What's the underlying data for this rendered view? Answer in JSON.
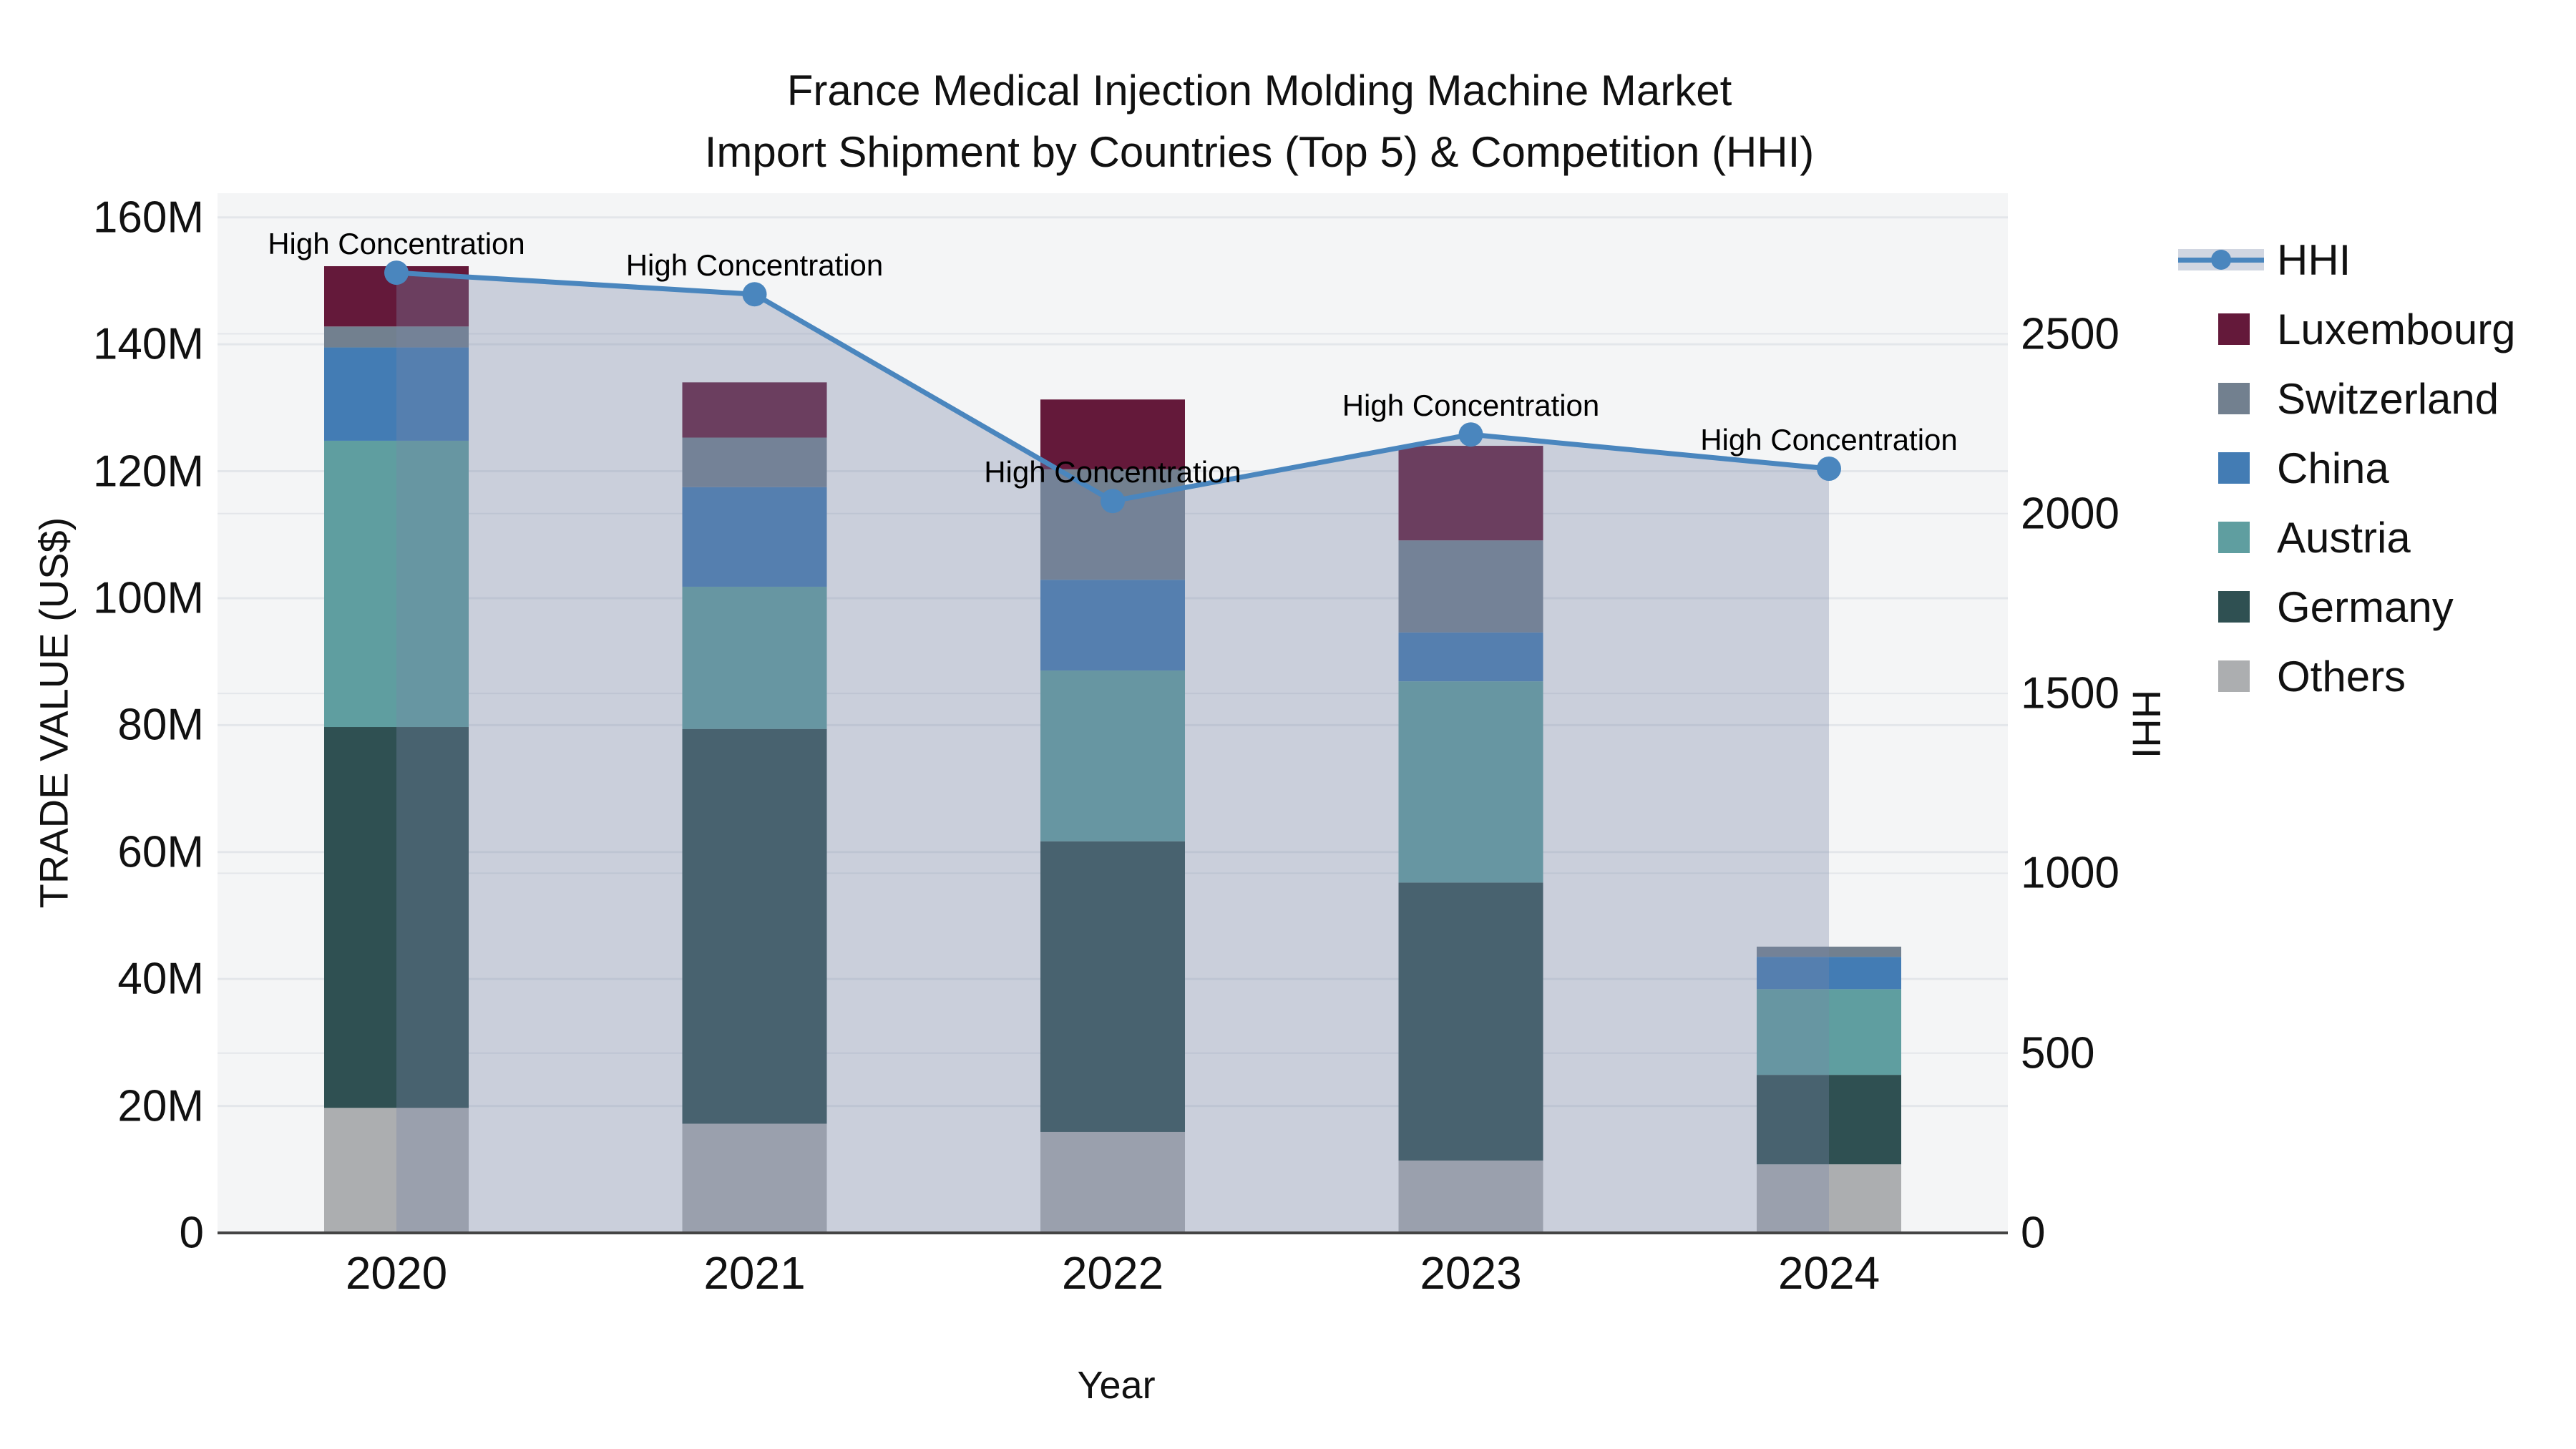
{
  "page": {
    "title_line1": "France Medical Injection Molding Machine Market",
    "title_line2": "Import Shipment by Countries (Top 5) & Competition (HHI)"
  },
  "chart_data": {
    "type": "bar",
    "subtype": "stacked-bars-with-line-overlay",
    "title": "France Medical Injection Molding Machine Market",
    "subtitle": "Import Shipment by Countries (Top 5) & Competition (HHI)",
    "xlabel": "Year",
    "ylabel_left": "TRADE VALUE (US$)",
    "ylabel_right": "HHI",
    "grid": true,
    "legend_position": "right",
    "plot_bg_color": "#f4f5f6",
    "grid_color": "#e3e6ea",
    "axis_line_color": "#444444",
    "categories": [
      "2020",
      "2021",
      "2022",
      "2023",
      "2024"
    ],
    "y_left_axis": {
      "unit": "M = millions US$",
      "tick_values": [
        0,
        20,
        40,
        60,
        80,
        100,
        120,
        140,
        160
      ],
      "tick_labels": [
        "0",
        "20M",
        "40M",
        "60M",
        "80M",
        "100M",
        "120M",
        "140M",
        "160M"
      ],
      "max": 163.8
    },
    "y_right_axis": {
      "tick_values": [
        0,
        500,
        1000,
        1500,
        2000,
        2500
      ],
      "tick_labels": [
        "0",
        "500",
        "1000",
        "1500",
        "2000",
        "2500"
      ],
      "max": 2891
    },
    "stack_order_bottom_to_top": [
      "Others",
      "Germany",
      "Austria",
      "China",
      "Switzerland",
      "Luxembourg"
    ],
    "series": [
      {
        "name": "Luxembourg",
        "color": "#64193a",
        "values": [
          9.5,
          8.7,
          11.0,
          14.9,
          0.0
        ]
      },
      {
        "name": "Switzerland",
        "color": "#72808f",
        "values": [
          3.3,
          7.8,
          17.4,
          14.5,
          1.6
        ]
      },
      {
        "name": "China",
        "color": "#437cb4",
        "values": [
          14.7,
          15.7,
          14.3,
          7.7,
          5.1
        ]
      },
      {
        "name": "Austria",
        "color": "#5f9ea0",
        "values": [
          45.1,
          22.4,
          26.9,
          31.7,
          13.5
        ]
      },
      {
        "name": "Germany",
        "color": "#2f5052",
        "values": [
          60.0,
          62.2,
          45.8,
          43.8,
          14.1
        ]
      },
      {
        "name": "Others",
        "color": "#acaeb0",
        "values": [
          19.7,
          17.2,
          15.9,
          11.4,
          10.8
        ]
      }
    ],
    "bar_totals": [
      152.3,
      133.8,
      131.3,
      124.0,
      45.1
    ],
    "line_series": {
      "name": "HHI",
      "color": "#4a86be",
      "area_fill_color": "rgba(120,136,166,0.34)",
      "values": [
        2670,
        2610,
        2035,
        2220,
        2125
      ]
    },
    "annotations": [
      "High Concentration",
      "High Concentration",
      "High Concentration",
      "High Concentration",
      "High Concentration"
    ],
    "legend_items": [
      "HHI",
      "Luxembourg",
      "Switzerland",
      "China",
      "Austria",
      "Germany",
      "Others"
    ]
  }
}
